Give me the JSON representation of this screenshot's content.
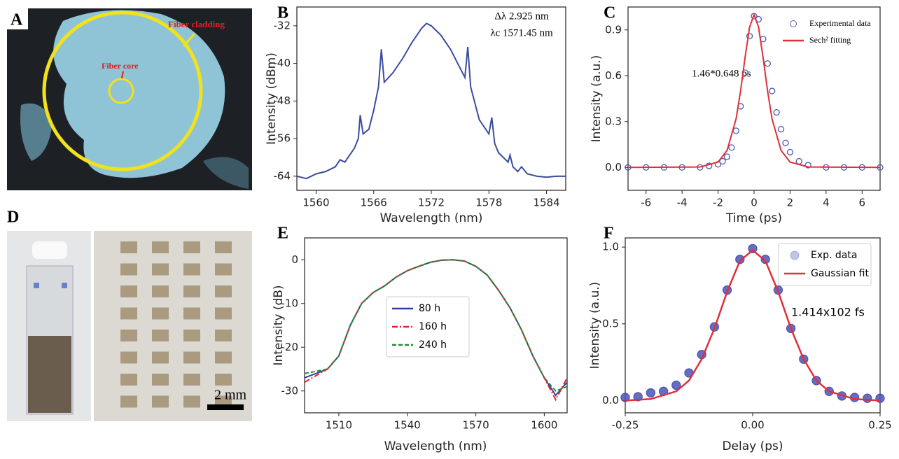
{
  "panel_labels": [
    "A",
    "B",
    "C",
    "D",
    "E",
    "F"
  ],
  "photo_a": {
    "labels": [
      "Fiber cladding",
      "Fiber core"
    ]
  },
  "photo_d": {
    "scale_label": "2 mm"
  },
  "chart_data": [
    {
      "type": "line",
      "x_label": "Wavelength (nm)",
      "y_label": "Intensity (dBm)",
      "annotations": [
        "Δλ 2.925 nm",
        "λc 1571.45 nm"
      ],
      "x": [
        1558,
        1559,
        1560,
        1561,
        1562,
        1562.5,
        1563,
        1564,
        1564.4,
        1564.6,
        1564.9,
        1565.5,
        1566,
        1566.5,
        1566.8,
        1567.1,
        1568,
        1569,
        1570,
        1571,
        1571.5,
        1572,
        1573,
        1574,
        1575,
        1575.5,
        1575.8,
        1576.1,
        1577,
        1578,
        1578.3,
        1578.6,
        1579,
        1580,
        1580.2,
        1580.5,
        1581,
        1581.4,
        1582,
        1583,
        1584,
        1585,
        1586
      ],
      "series": [
        {
          "color": "#3a4c9e",
          "marker": "line",
          "dash": "solid",
          "values": [
            -64,
            -64.5,
            -63.5,
            -63,
            -62,
            -60.5,
            -61,
            -58,
            -56,
            -51,
            -55,
            -54,
            -50,
            -45,
            -37,
            -44,
            -42,
            -39,
            -35.5,
            -32.5,
            -31.5,
            -32,
            -34,
            -37,
            -41,
            -43,
            -36.5,
            -45,
            -52,
            -55,
            -51.5,
            -57,
            -59,
            -61,
            -59.5,
            -62,
            -63,
            -62,
            -63.5,
            -64,
            -64.2,
            -64,
            -64
          ]
        }
      ],
      "xlim": [
        1558,
        1586
      ],
      "xticks": [
        1560,
        1566,
        1572,
        1578,
        1584
      ],
      "ylim": [
        -67,
        -28
      ],
      "yticks": [
        -64,
        -56,
        -48,
        -40,
        -32
      ]
    },
    {
      "type": "line",
      "x_label": "Time (ps)",
      "y_label": "Intensity (a.u.)",
      "annotations": [
        "1.46*0.648 ps"
      ],
      "legend": "upper right",
      "series": [
        {
          "name": "Experimental data",
          "color": "#4a5bb0",
          "marker": "circle",
          "x": [
            -7,
            -6,
            -5,
            -4,
            -3,
            -2.5,
            -2,
            -1.75,
            -1.5,
            -1.25,
            -1,
            -0.75,
            -0.5,
            -0.25,
            0,
            0.25,
            0.5,
            0.75,
            1,
            1.25,
            1.5,
            1.75,
            2,
            2.5,
            3,
            4,
            5,
            6,
            7
          ],
          "values": [
            0,
            0,
            0,
            0,
            0,
            0.01,
            0.02,
            0.04,
            0.07,
            0.13,
            0.24,
            0.4,
            0.62,
            0.86,
            0.99,
            0.97,
            0.84,
            0.68,
            0.5,
            0.36,
            0.25,
            0.16,
            0.1,
            0.04,
            0.015,
            0,
            0,
            0,
            0
          ]
        },
        {
          "name": "Sech² fitting",
          "color": "#e0303a",
          "marker": "line",
          "dash": "solid",
          "x": [
            -7,
            -3,
            -2,
            -1.5,
            -1,
            -0.75,
            -0.5,
            -0.25,
            0,
            0.25,
            0.5,
            0.75,
            1,
            1.5,
            2,
            3,
            7
          ],
          "values": [
            0,
            0.003,
            0.035,
            0.111,
            0.317,
            0.5,
            0.72,
            0.918,
            1,
            0.918,
            0.72,
            0.5,
            0.317,
            0.111,
            0.035,
            0.003,
            0
          ]
        }
      ],
      "xlim": [
        -7,
        7
      ],
      "xticks": [
        -6,
        -4,
        -2,
        0,
        2,
        4,
        6
      ],
      "ylim": [
        -0.15,
        1.05
      ],
      "yticks": [
        {
          "value": 0,
          "label": "0.0"
        },
        0.3,
        0.6,
        0.9
      ]
    },
    {
      "type": "line",
      "x_label": "Wavelength (nm)",
      "y_label": "Intensity (dB)",
      "legend": "center",
      "x": [
        1495,
        1500,
        1505,
        1510,
        1515,
        1520,
        1525,
        1530,
        1535,
        1540,
        1545,
        1550,
        1555,
        1560,
        1565,
        1570,
        1575,
        1580,
        1585,
        1590,
        1595,
        1600,
        1605,
        1610
      ],
      "series": [
        {
          "name": "80 h",
          "color": "#2a3f9a",
          "marker": "line",
          "dash": "solid",
          "values": [
            -27,
            -26,
            -25,
            -22,
            -15,
            -10,
            -7.5,
            -6,
            -4,
            -2.5,
            -1.5,
            -0.6,
            -0.1,
            0,
            -0.3,
            -1.5,
            -3.5,
            -7,
            -11,
            -16,
            -22,
            -27,
            -31,
            -28
          ]
        },
        {
          "name": "160 h",
          "color": "#e8202a",
          "marker": "line",
          "dash": "dashdot",
          "values": [
            -28,
            -26.5,
            -25,
            -22,
            -15,
            -10,
            -7.5,
            -6,
            -4,
            -2.5,
            -1.5,
            -0.6,
            -0.1,
            0,
            -0.3,
            -1.5,
            -3.5,
            -7,
            -11,
            -16,
            -22,
            -27,
            -32,
            -27
          ]
        },
        {
          "name": "240 h",
          "color": "#2a8a3a",
          "marker": "line",
          "dash": "dashed",
          "values": [
            -26,
            -25.5,
            -25,
            -22,
            -15,
            -10,
            -7.5,
            -6,
            -4,
            -2.5,
            -1.5,
            -0.6,
            -0.1,
            0,
            -0.3,
            -1.5,
            -3.5,
            -7,
            -11,
            -16,
            -22,
            -27,
            -30,
            -29
          ]
        }
      ],
      "xlim": [
        1495,
        1610
      ],
      "xticks": [
        1510,
        1540,
        1570,
        1600
      ],
      "ylim": [
        -35,
        5
      ],
      "yticks": [
        -30,
        -20,
        -10,
        0
      ]
    },
    {
      "type": "line",
      "x_label": "Delay (ps)",
      "y_label": "Intensity (a.u.)",
      "annotations": [
        "1.414x102 fs"
      ],
      "legend": "upper right",
      "series": [
        {
          "name": "Exp. data",
          "color": "#4a55b5",
          "marker": "circle",
          "x": [
            -0.25,
            -0.225,
            -0.2,
            -0.175,
            -0.15,
            -0.125,
            -0.1,
            -0.075,
            -0.05,
            -0.025,
            0,
            0.025,
            0.05,
            0.075,
            0.1,
            0.125,
            0.15,
            0.175,
            0.2,
            0.225,
            0.25
          ],
          "values": [
            0.02,
            0.025,
            0.05,
            0.06,
            0.1,
            0.18,
            0.3,
            0.48,
            0.72,
            0.92,
            0.99,
            0.92,
            0.72,
            0.47,
            0.27,
            0.13,
            0.06,
            0.03,
            0.02,
            0.015,
            0.015
          ]
        },
        {
          "name": "Gaussian fit",
          "color": "#e0303a",
          "marker": "line",
          "dash": "solid",
          "x": [
            -0.25,
            -0.2,
            -0.15,
            -0.125,
            -0.1,
            -0.075,
            -0.05,
            -0.025,
            0,
            0.025,
            0.05,
            0.075,
            0.1,
            0.125,
            0.15,
            0.2,
            0.25
          ],
          "values": [
            0,
            0.01,
            0.06,
            0.13,
            0.27,
            0.47,
            0.71,
            0.91,
            0.98,
            0.91,
            0.71,
            0.47,
            0.27,
            0.13,
            0.06,
            0.01,
            0
          ]
        }
      ],
      "xlim": [
        -0.25,
        0.25
      ],
      "xticks": [
        -0.25,
        {
          "value": 0,
          "label": "0.00"
        },
        0.25
      ],
      "ylim": [
        -0.08,
        1.06
      ],
      "yticks": [
        {
          "value": 0,
          "label": "0.0"
        },
        0.5,
        {
          "value": 1,
          "label": "1.0"
        }
      ]
    }
  ]
}
